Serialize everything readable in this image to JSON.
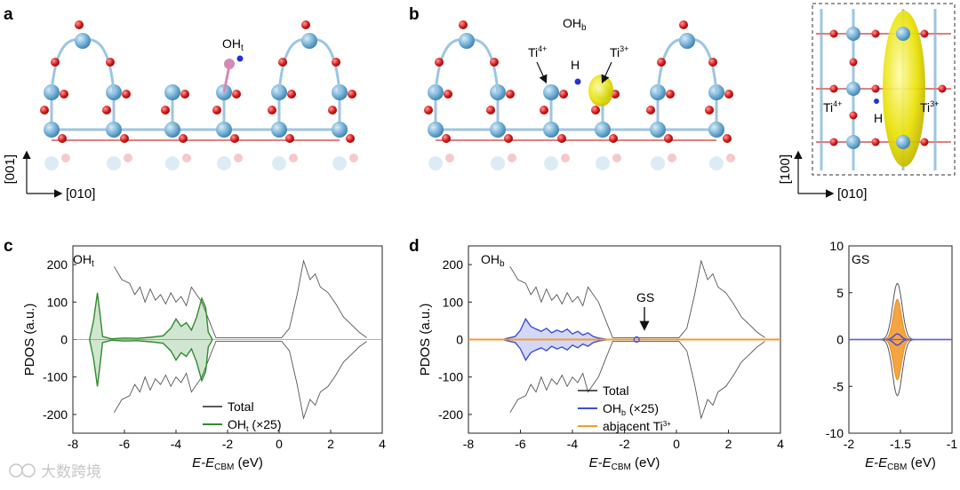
{
  "panels": {
    "a": {
      "label": "a",
      "site": "OH",
      "site_sub": "t",
      "axis_up": "[001]",
      "axis_right": "[010]"
    },
    "b": {
      "label": "b",
      "site": "OH",
      "site_sub": "b",
      "ti4": "Ti",
      "ti4_sup": "4+",
      "ti3": "Ti",
      "ti3_sup": "3+",
      "h": "H",
      "inset_ti4": "Ti",
      "inset_ti4_sup": "4+",
      "inset_ti3": "Ti",
      "inset_ti3_sup": "3+",
      "inset_h": "H",
      "axis_up": "[100]",
      "axis_right": "[010]"
    },
    "c": {
      "label": "c",
      "inner": "OH",
      "inner_sub": "t",
      "legend": [
        {
          "text": "Total",
          "color": "#222222"
        },
        {
          "text": "OH",
          "sub": "t",
          "suffix": " (×25)",
          "color": "#2e8b2e"
        }
      ]
    },
    "d": {
      "label": "d",
      "inner": "OH",
      "inner_sub": "b",
      "gs": "GS",
      "legend": [
        {
          "text": "Total",
          "color": "#222222"
        },
        {
          "text": "OH",
          "sub": "b",
          "suffix": " (×25)",
          "color": "#3b4fd6"
        },
        {
          "text": "abjacent Ti",
          "sup": "3+",
          "color": "#f59a2e"
        }
      ]
    },
    "e": {
      "inner": "GS"
    }
  },
  "colors": {
    "ti": "#79b4d8",
    "o": "#d81c1c",
    "h": "#2433d0",
    "charge": "#e8e000",
    "green": "#2e8b2e",
    "blue": "#3b4fd6",
    "orange": "#f59a2e"
  },
  "watermark": "大数跨境",
  "chart_data": [
    {
      "id": "c",
      "type": "line",
      "xlabel_main": "E",
      "xlabel_mid": "-E",
      "xlabel_sub": "CBM",
      "xlabel_unit": " (eV)",
      "ylabel": "PDOS (a.u.)",
      "xlim": [
        -8,
        4
      ],
      "ylim": [
        -250,
        250
      ],
      "xticks": [
        -8,
        -6,
        -4,
        -2,
        0,
        2,
        4
      ],
      "yticks": [
        -200,
        -100,
        0,
        100,
        200
      ],
      "series": [
        {
          "name": "Total",
          "role": "total",
          "points": [
            [
              -6.4,
              -195
            ],
            [
              -6.1,
              -160
            ],
            [
              -5.8,
              -150
            ],
            [
              -5.6,
              -120
            ],
            [
              -5.4,
              -140
            ],
            [
              -5.2,
              -100
            ],
            [
              -5.0,
              -135
            ],
            [
              -4.8,
              -105
            ],
            [
              -4.6,
              -120
            ],
            [
              -4.4,
              -95
            ],
            [
              -4.2,
              -125
            ],
            [
              -4.0,
              -100
            ],
            [
              -3.8,
              -115
            ],
            [
              -3.6,
              -90
            ],
            [
              -3.4,
              -140
            ],
            [
              -3.2,
              -120
            ],
            [
              -3.0,
              -100
            ],
            [
              -2.8,
              -65
            ],
            [
              -2.6,
              -30
            ],
            [
              -2.45,
              -5
            ],
            [
              0.1,
              -5
            ],
            [
              0.4,
              -30
            ],
            [
              0.7,
              -120
            ],
            [
              0.95,
              -210
            ],
            [
              1.2,
              -160
            ],
            [
              1.4,
              -175
            ],
            [
              1.6,
              -140
            ],
            [
              1.9,
              -125
            ],
            [
              2.2,
              -95
            ],
            [
              2.5,
              -60
            ],
            [
              2.8,
              -40
            ],
            [
              3.1,
              -20
            ],
            [
              3.4,
              -5
            ]
          ]
        },
        {
          "name": "OH_t (×25)",
          "role": "fill",
          "color": "#2e8b2e",
          "points": [
            [
              -7.35,
              2
            ],
            [
              -7.2,
              50
            ],
            [
              -7.05,
              125
            ],
            [
              -6.95,
              70
            ],
            [
              -6.85,
              8
            ],
            [
              -6.5,
              2
            ],
            [
              -6.0,
              4
            ],
            [
              -5.5,
              3
            ],
            [
              -5.0,
              6
            ],
            [
              -4.5,
              10
            ],
            [
              -4.2,
              30
            ],
            [
              -4.0,
              55
            ],
            [
              -3.8,
              35
            ],
            [
              -3.6,
              45
            ],
            [
              -3.4,
              25
            ],
            [
              -3.2,
              60
            ],
            [
              -3.0,
              110
            ],
            [
              -2.85,
              85
            ],
            [
              -2.75,
              20
            ],
            [
              -2.6,
              2
            ]
          ]
        }
      ]
    },
    {
      "id": "d",
      "type": "line",
      "xlabel_main": "E",
      "xlabel_mid": "-E",
      "xlabel_sub": "CBM",
      "xlabel_unit": " (eV)",
      "ylabel": "PDOS (a.u.)",
      "xlim": [
        -8,
        4
      ],
      "ylim": [
        -250,
        250
      ],
      "xticks": [
        -8,
        -6,
        -4,
        -2,
        0,
        2,
        4
      ],
      "yticks": [
        -200,
        -100,
        0,
        100,
        200
      ],
      "series": [
        {
          "name": "Total",
          "role": "total",
          "points": [
            [
              -6.4,
              -195
            ],
            [
              -6.1,
              -160
            ],
            [
              -5.8,
              -150
            ],
            [
              -5.6,
              -120
            ],
            [
              -5.4,
              -140
            ],
            [
              -5.2,
              -100
            ],
            [
              -5.0,
              -135
            ],
            [
              -4.8,
              -105
            ],
            [
              -4.6,
              -120
            ],
            [
              -4.4,
              -95
            ],
            [
              -4.2,
              -125
            ],
            [
              -4.0,
              -100
            ],
            [
              -3.8,
              -115
            ],
            [
              -3.6,
              -90
            ],
            [
              -3.4,
              -140
            ],
            [
              -3.2,
              -120
            ],
            [
              -3.0,
              -100
            ],
            [
              -2.8,
              -65
            ],
            [
              -2.6,
              -30
            ],
            [
              -2.45,
              -5
            ],
            [
              0.1,
              -5
            ],
            [
              0.4,
              -30
            ],
            [
              0.7,
              -120
            ],
            [
              0.95,
              -210
            ],
            [
              1.2,
              -160
            ],
            [
              1.4,
              -175
            ],
            [
              1.6,
              -140
            ],
            [
              1.9,
              -125
            ],
            [
              2.2,
              -95
            ],
            [
              2.5,
              -60
            ],
            [
              2.8,
              -40
            ],
            [
              3.1,
              -20
            ],
            [
              3.4,
              -5
            ]
          ]
        },
        {
          "name": "OH_b (×25)",
          "role": "fill",
          "color": "#3b4fd6",
          "points": [
            [
              -6.6,
              2
            ],
            [
              -6.2,
              8
            ],
            [
              -6.0,
              25
            ],
            [
              -5.8,
              55
            ],
            [
              -5.6,
              35
            ],
            [
              -5.4,
              28
            ],
            [
              -5.2,
              22
            ],
            [
              -5.0,
              30
            ],
            [
              -4.8,
              18
            ],
            [
              -4.6,
              25
            ],
            [
              -4.4,
              20
            ],
            [
              -4.2,
              28
            ],
            [
              -4.0,
              15
            ],
            [
              -3.8,
              22
            ],
            [
              -3.6,
              12
            ],
            [
              -3.4,
              18
            ],
            [
              -3.2,
              8
            ],
            [
              -3.0,
              4
            ],
            [
              -2.7,
              1
            ]
          ]
        },
        {
          "name": "abjacent Ti3+",
          "role": "flat",
          "color": "#f59a2e",
          "points": [
            [
              -8,
              0
            ],
            [
              4,
              0
            ]
          ]
        }
      ]
    },
    {
      "id": "e",
      "type": "line",
      "xlabel_main": "E",
      "xlabel_mid": "-E",
      "xlabel_sub": "CBM",
      "xlabel_unit": " (eV)",
      "xlim": [
        -2,
        -1
      ],
      "ylim": [
        -10,
        10
      ],
      "xticks": [
        -2,
        -1.5,
        -1
      ],
      "yticks": [
        -10,
        -5,
        0,
        5,
        10
      ],
      "gs_center": -1.53,
      "total_peak": 6.0,
      "ti3_peak": 4.3,
      "ohb_peak": 0.6
    }
  ]
}
